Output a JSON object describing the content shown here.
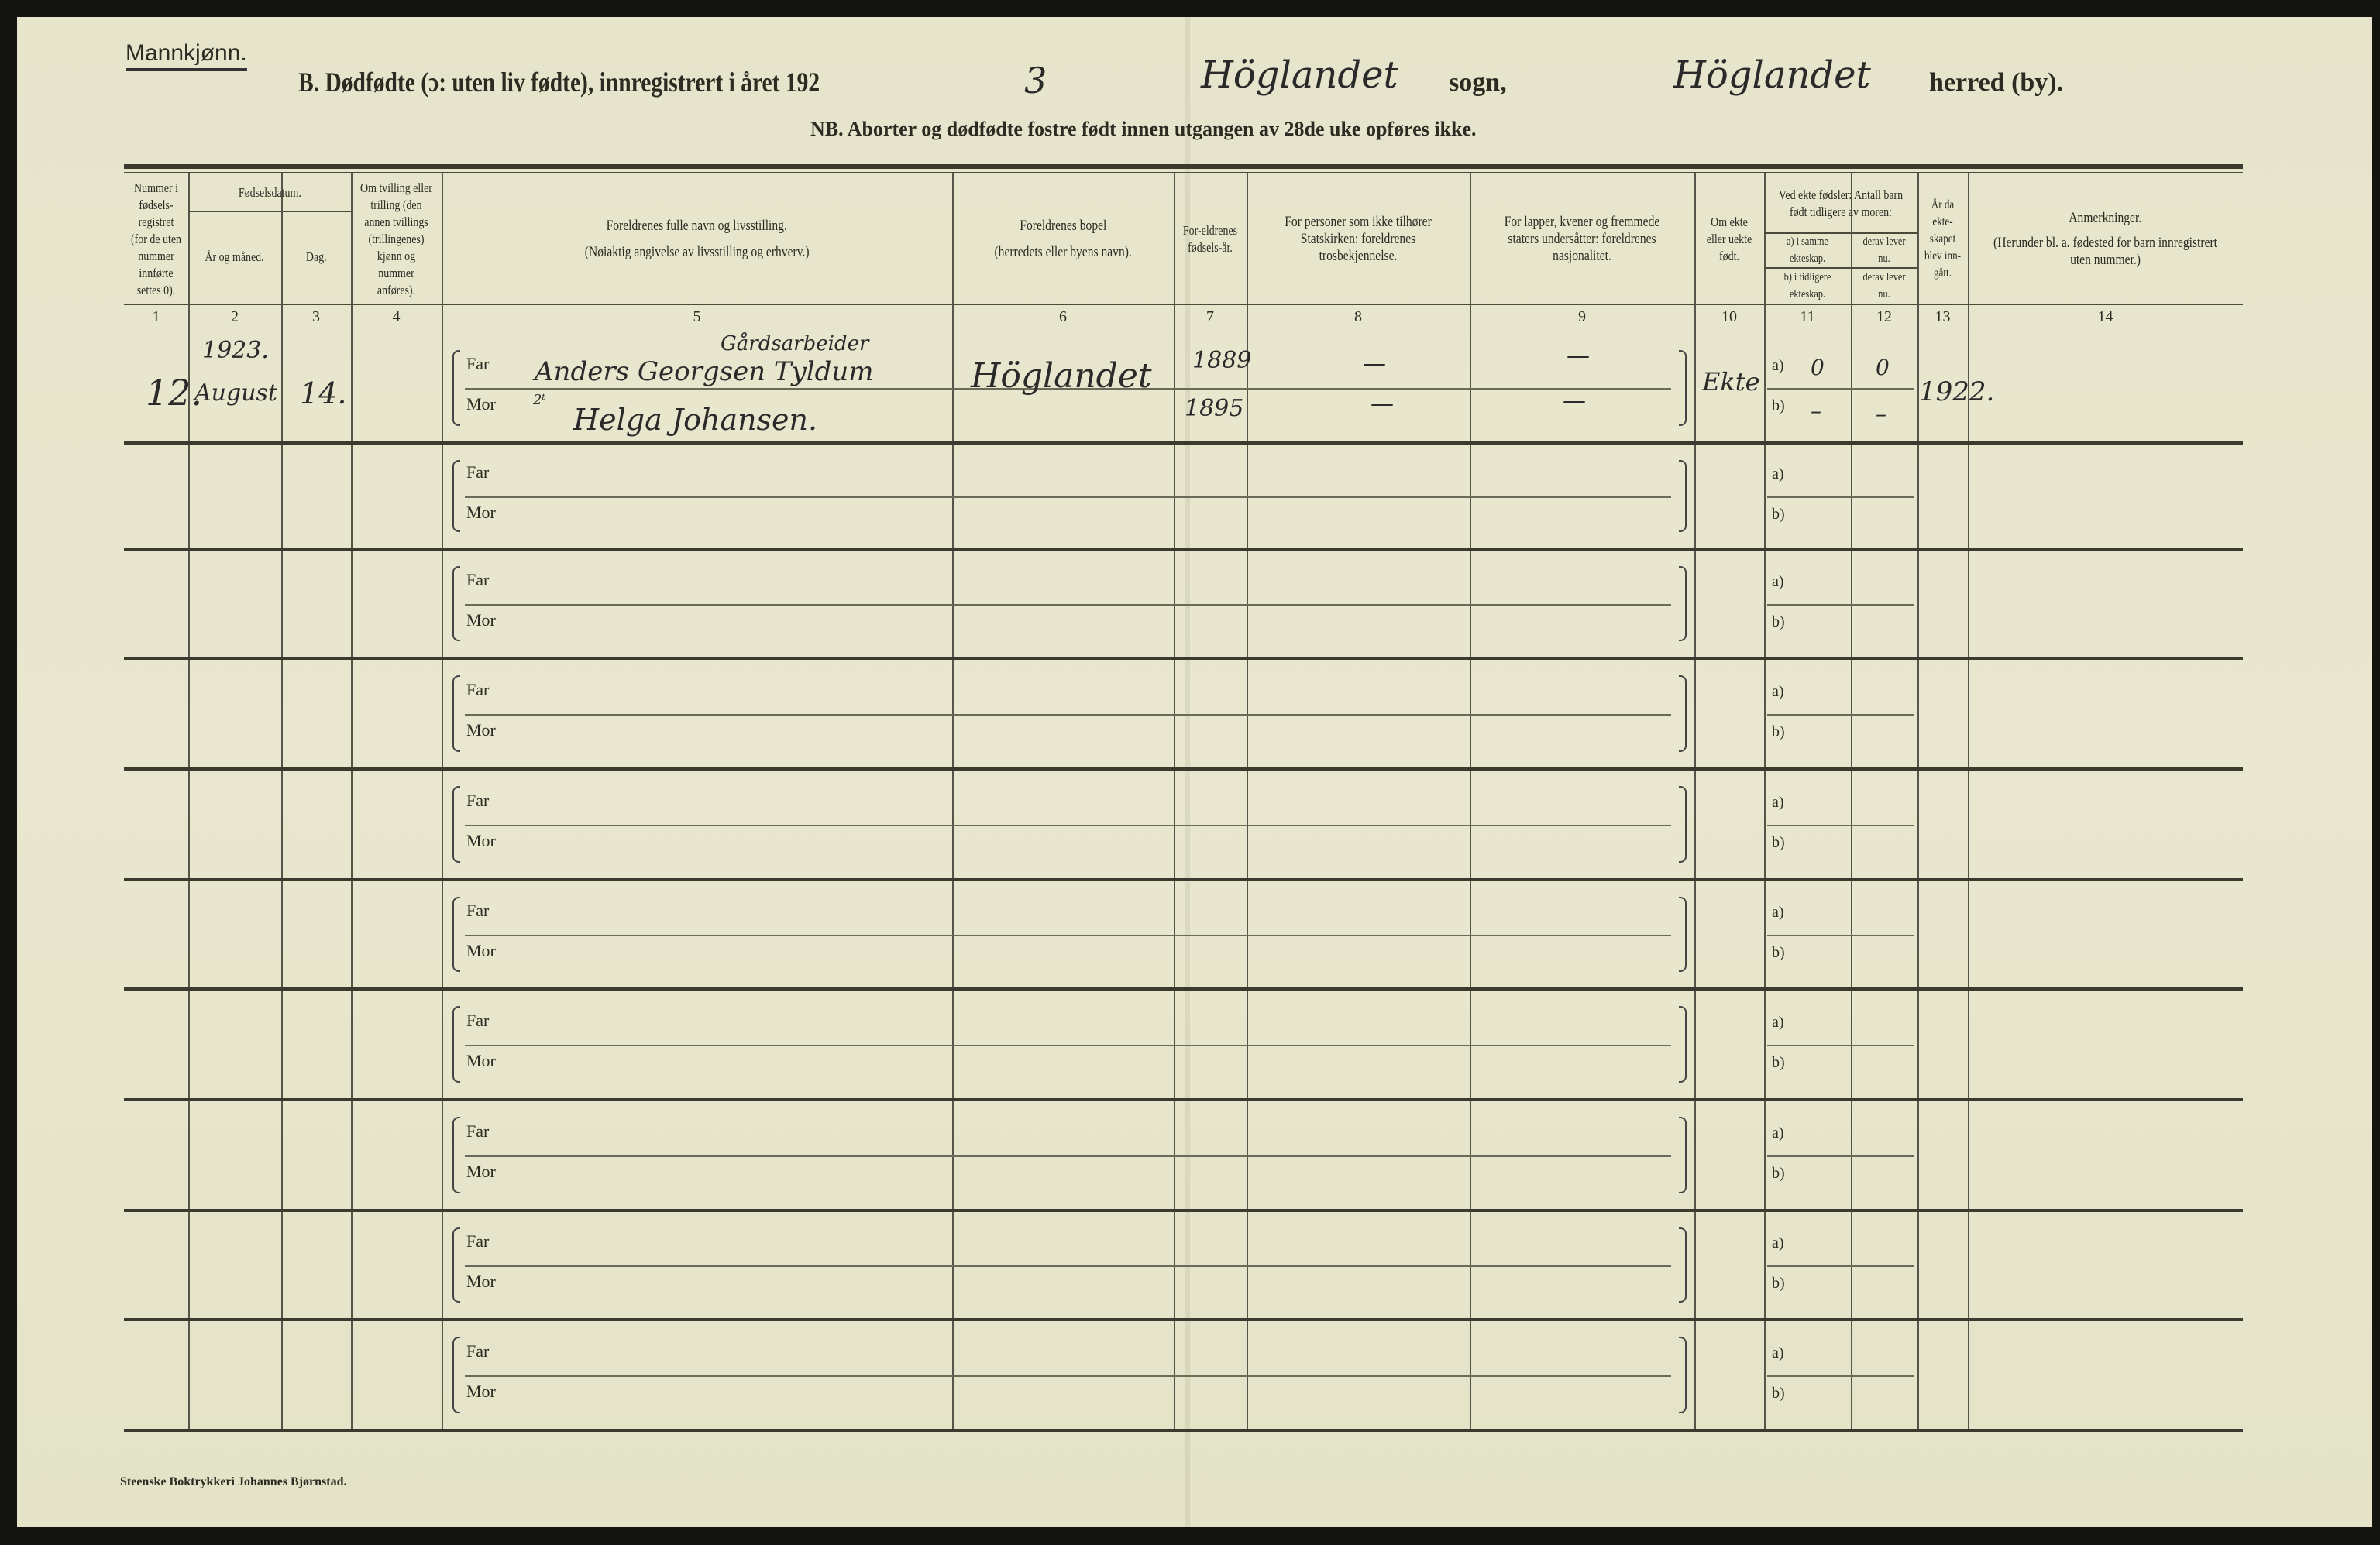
{
  "header": {
    "gender": "Mannkjønn.",
    "title": "B. Dødfødte (ɔ: uten liv fødte), innregistrert i året 192",
    "year_digit": "3",
    "sogn_value": "Höglandet",
    "sogn_label": "sogn,",
    "herred_value": "Höglandet",
    "herred_label": "herred (by).",
    "note": "NB. Aborter og dødfødte fostre født innen utgangen av 28de uke opføres ikke."
  },
  "columns": {
    "c1": "Nummer i fødsels-registret (for de uten nummer innførte settes 0).",
    "c23_group": "Fødselsdatum.",
    "c2": "År og måned.",
    "c3": "Dag.",
    "c4": "Om tvilling eller trilling (den annen tvillings (trillingenes) kjønn og nummer anføres).",
    "c5_a": "Foreldrenes fulle navn og livsstilling.",
    "c5_b": "(Nøiaktig angivelse av livsstilling og erhverv.)",
    "c6_a": "Foreldrenes bopel",
    "c6_b": "(herredets eller byens navn).",
    "c7": "For-eldrenes fødsels-år.",
    "c8": "For personer som ikke tilhører Statskirken: foreldrenes trosbekjennelse.",
    "c9": "For lapper, kvener og fremmede staters undersåtter: foreldrenes nasjonalitet.",
    "c10": "Om ekte eller uekte født.",
    "c1112_group": "Ved ekte fødsler: Antall barn født tidligere av moren:",
    "c11a": "a) i samme ekteskap.",
    "c12a": "derav lever nu.",
    "c11b": "b) i tidligere ekteskap.",
    "c12b": "derav lever nu.",
    "c13": "År da ekte-skapet blev inn-gått.",
    "c14_a": "Anmerkninger.",
    "c14_b": "(Herunder bl. a. fødested for barn innregistrert uten nummer.)",
    "numbers": [
      "1",
      "2",
      "3",
      "4",
      "5",
      "6",
      "7",
      "8",
      "9",
      "10",
      "11",
      "12",
      "13",
      "14"
    ]
  },
  "labels": {
    "far": "Far",
    "mor": "Mor",
    "a": "a)",
    "b": "b)"
  },
  "rows": [
    {
      "nummer": "12.",
      "aar": "1923.",
      "maaned": "August",
      "dag": "14.",
      "far_stilling": "Gårdsarbeider",
      "far_navn": "Anders Georgsen Tyldum",
      "mor_navn": "Helga Johansen.",
      "mor_stilling": "2ᵗ",
      "bopel": "Höglandet",
      "far_aar": "1889",
      "mor_aar": "1895",
      "far_tro": "—",
      "mor_tro": "—",
      "far_nasj": "—",
      "mor_nasj": "—",
      "ekte": "Ekte",
      "a11": "0",
      "a12": "0",
      "b11": "–",
      "b12": "–",
      "ekteskap_aar": "1922.",
      "anm": ""
    },
    {},
    {},
    {},
    {},
    {},
    {},
    {},
    {},
    {}
  ],
  "footer": {
    "printer": "Steenske Boktrykkeri Johannes Bjørnstad."
  },
  "colors": {
    "paper": "#e8e6cd",
    "ink": "#2b2b22",
    "background": "#141410"
  }
}
